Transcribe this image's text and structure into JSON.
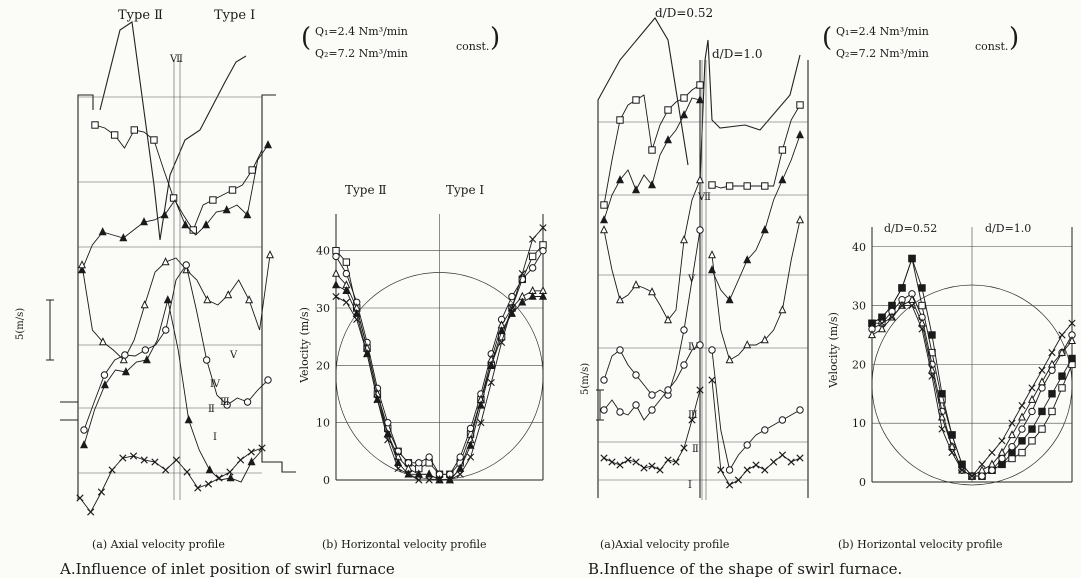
{
  "panelA": {
    "axial": {
      "label_type2": "Type Ⅱ",
      "label_type1": "Type Ⅰ",
      "conditions": {
        "q1": "Q₁=2.4 Nm³/min",
        "q2": "Q₂=7.2 Nm³/min",
        "const": "const."
      },
      "scale_label": "5(m/s)",
      "roman_labels": [
        "Ⅰ",
        "Ⅱ",
        "Ⅲ",
        "Ⅳ",
        "Ⅴ",
        "Ⅶ"
      ],
      "caption": "(a) Axial velocity profile"
    },
    "horizontal": {
      "label_type2": "Type Ⅱ",
      "label_type1": "Type Ⅰ",
      "ylabel": "Velocity (m/s)",
      "yticks": [
        "0",
        "10",
        "20",
        "30",
        "40"
      ],
      "caption": "(b) Horizontal velocity profile"
    },
    "title": "A.Influence of inlet position of swirl furnace"
  },
  "panelB": {
    "axial": {
      "label_small": "d/D=0.52",
      "label_large": "d/D=1.0",
      "conditions": {
        "q1": "Q₁=2.4 Nm³/min",
        "q2": "Q₂=7.2 Nm³/min",
        "const": "const."
      },
      "scale_label": "5(m/s)",
      "roman_labels": [
        "Ⅰ",
        "Ⅱ",
        "Ⅲ",
        "Ⅳ",
        "Ⅴ",
        "Ⅶ"
      ],
      "caption": "(a)Axial velocity profile"
    },
    "horizontal": {
      "label_small": "d/D=0.52",
      "label_large": "d/D=1.0",
      "ylabel": "Velocity (m/s)",
      "yticks": [
        "0",
        "10",
        "20",
        "30",
        "40"
      ],
      "caption": "(b) Horizontal velocity profile"
    },
    "title": "B.Influence of the shape of swirl furnace."
  },
  "chart_data": [
    {
      "type": "line",
      "panel": "A(b)",
      "ylabel": "Velocity (m/s)",
      "ylim": [
        0,
        45
      ],
      "x": [
        0.0,
        0.05,
        0.1,
        0.15,
        0.2,
        0.25,
        0.3,
        0.35,
        0.4,
        0.45,
        0.5,
        0.55,
        0.6,
        0.65,
        0.7,
        0.75,
        0.8,
        0.85,
        0.9,
        0.95,
        1.0
      ],
      "series": [
        {
          "marker": "square",
          "values": [
            40,
            38,
            30,
            23,
            15,
            9,
            5,
            3,
            2,
            3,
            1,
            1,
            3,
            8,
            14,
            20,
            25,
            30,
            35,
            39,
            41
          ]
        },
        {
          "marker": "circle",
          "values": [
            39,
            36,
            31,
            24,
            16,
            10,
            5,
            3,
            3,
            4,
            1,
            1,
            4,
            9,
            15,
            22,
            28,
            32,
            35,
            37,
            40
          ]
        },
        {
          "marker": "triangle-open",
          "values": [
            36,
            34,
            30,
            23,
            15,
            8,
            4,
            2,
            1,
            1,
            0,
            0,
            2,
            7,
            14,
            21,
            27,
            30,
            32,
            33,
            33
          ]
        },
        {
          "marker": "triangle-filled",
          "values": [
            34,
            33,
            29,
            22,
            14,
            8,
            3,
            1,
            1,
            1,
            0,
            0,
            2,
            6,
            13,
            20,
            26,
            29,
            31,
            32,
            32
          ]
        },
        {
          "marker": "x",
          "values": [
            32,
            31,
            28,
            22,
            14,
            7,
            2,
            1,
            0,
            0,
            0,
            0,
            1,
            4,
            10,
            17,
            24,
            30,
            36,
            42,
            44
          ]
        }
      ],
      "grid": true
    },
    {
      "type": "line",
      "panel": "B(b)",
      "ylabel": "Velocity (m/s)",
      "ylim": [
        0,
        42
      ],
      "x": [
        0.0,
        0.05,
        0.1,
        0.15,
        0.2,
        0.25,
        0.3,
        0.35,
        0.4,
        0.45,
        0.5,
        0.55,
        0.6,
        0.65,
        0.7,
        0.75,
        0.8,
        0.85,
        0.9,
        0.95,
        1.0
      ],
      "series": [
        {
          "marker": "square",
          "values": [
            27,
            28,
            30,
            33,
            38,
            30,
            22,
            14,
            8,
            3,
            1,
            1,
            2,
            3,
            4,
            5,
            7,
            9,
            12,
            16,
            20
          ]
        },
        {
          "marker": "square-filled",
          "values": [
            27,
            28,
            30,
            33,
            38,
            33,
            25,
            15,
            8,
            3,
            1,
            1,
            2,
            3,
            5,
            7,
            9,
            12,
            15,
            18,
            21
          ]
        },
        {
          "marker": "circle",
          "values": [
            26,
            27,
            29,
            31,
            32,
            28,
            20,
            12,
            6,
            2,
            1,
            1,
            2,
            4,
            6,
            9,
            12,
            16,
            19,
            22,
            25
          ]
        },
        {
          "marker": "triangle-open",
          "values": [
            25,
            26,
            28,
            30,
            31,
            27,
            19,
            11,
            6,
            2,
            1,
            2,
            3,
            5,
            8,
            11,
            14,
            17,
            20,
            22,
            24
          ]
        },
        {
          "marker": "x",
          "values": [
            27,
            27,
            28,
            30,
            30,
            26,
            18,
            9,
            5,
            2,
            1,
            3,
            5,
            7,
            10,
            13,
            16,
            19,
            22,
            25,
            27
          ]
        }
      ],
      "grid": true
    }
  ]
}
